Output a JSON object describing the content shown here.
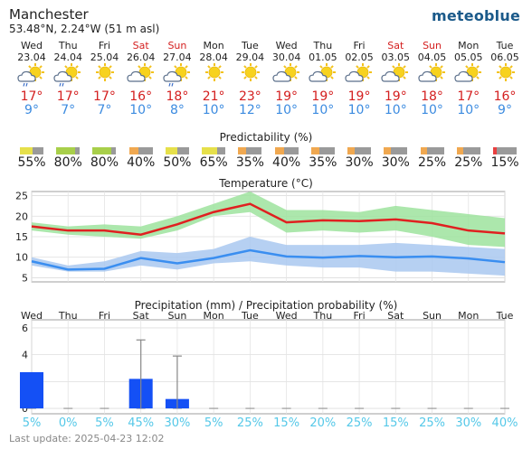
{
  "header": {
    "city": "Manchester",
    "coords": "53.48°N, 2.24°W (51 m asl)",
    "logo": "meteoblue"
  },
  "days": [
    {
      "name": "Wed",
      "date": "23.04",
      "tmax": "17°",
      "tmin": "9°",
      "weekend": false,
      "icon": "sun-cloud-rain-icon",
      "pred": "55%",
      "pred_level": 0.55,
      "precip_mm": 2.7,
      "precip_err": null,
      "precip_prob": "5%"
    },
    {
      "name": "Thu",
      "date": "24.04",
      "tmax": "17°",
      "tmin": "7°",
      "weekend": false,
      "icon": "sun-cloud-rain-icon",
      "pred": "80%",
      "pred_level": 0.8,
      "precip_mm": 0,
      "precip_err": null,
      "precip_prob": "0%"
    },
    {
      "name": "Fri",
      "date": "25.04",
      "tmax": "17°",
      "tmin": "7°",
      "weekend": false,
      "icon": "sun-icon",
      "pred": "80%",
      "pred_level": 0.8,
      "precip_mm": 0,
      "precip_err": null,
      "precip_prob": "5%"
    },
    {
      "name": "Sat",
      "date": "26.04",
      "tmax": "16°",
      "tmin": "10°",
      "weekend": true,
      "icon": "sun-cloud-icon",
      "pred": "40%",
      "pred_level": 0.4,
      "precip_mm": 2.2,
      "precip_err": [
        0,
        5.1
      ],
      "precip_prob": "45%"
    },
    {
      "name": "Sun",
      "date": "27.04",
      "tmax": "18°",
      "tmin": "8°",
      "weekend": true,
      "icon": "sun-cloud-rain-icon",
      "pred": "50%",
      "pred_level": 0.5,
      "precip_mm": 0.7,
      "precip_err": [
        0,
        3.9
      ],
      "precip_prob": "30%"
    },
    {
      "name": "Mon",
      "date": "28.04",
      "tmax": "21°",
      "tmin": "10°",
      "weekend": false,
      "icon": "sun-icon",
      "pred": "65%",
      "pred_level": 0.65,
      "precip_mm": 0,
      "precip_err": null,
      "precip_prob": "5%"
    },
    {
      "name": "Tue",
      "date": "29.04",
      "tmax": "23°",
      "tmin": "12°",
      "weekend": false,
      "icon": "sun-icon",
      "pred": "35%",
      "pred_level": 0.35,
      "precip_mm": 0,
      "precip_err": null,
      "precip_prob": "25%"
    },
    {
      "name": "Wed",
      "date": "30.04",
      "tmax": "19°",
      "tmin": "10°",
      "weekend": false,
      "icon": "sun-cloud-icon",
      "pred": "40%",
      "pred_level": 0.4,
      "precip_mm": 0,
      "precip_err": null,
      "precip_prob": "15%"
    },
    {
      "name": "Thu",
      "date": "01.05",
      "tmax": "19°",
      "tmin": "10°",
      "weekend": false,
      "icon": "sun-cloud-icon",
      "pred": "35%",
      "pred_level": 0.35,
      "precip_mm": 0,
      "precip_err": null,
      "precip_prob": "20%"
    },
    {
      "name": "Fri",
      "date": "02.05",
      "tmax": "19°",
      "tmin": "10°",
      "weekend": false,
      "icon": "sun-cloud-icon",
      "pred": "30%",
      "pred_level": 0.3,
      "precip_mm": 0,
      "precip_err": null,
      "precip_prob": "25%"
    },
    {
      "name": "Sat",
      "date": "03.05",
      "tmax": "19°",
      "tmin": "10°",
      "weekend": true,
      "icon": "sun-cloud-icon",
      "pred": "30%",
      "pred_level": 0.3,
      "precip_mm": 0,
      "precip_err": null,
      "precip_prob": "15%"
    },
    {
      "name": "Sun",
      "date": "04.05",
      "tmax": "18°",
      "tmin": "10°",
      "weekend": true,
      "icon": "sun-cloud-icon",
      "pred": "25%",
      "pred_level": 0.25,
      "precip_mm": 0,
      "precip_err": null,
      "precip_prob": "25%"
    },
    {
      "name": "Mon",
      "date": "05.05",
      "tmax": "17°",
      "tmin": "10°",
      "weekend": false,
      "icon": "sun-cloud-icon",
      "pred": "25%",
      "pred_level": 0.25,
      "precip_mm": 0,
      "precip_err": null,
      "precip_prob": "30%"
    },
    {
      "name": "Tue",
      "date": "06.05",
      "tmax": "16°",
      "tmin": "9°",
      "weekend": false,
      "icon": "sun-icon",
      "pred": "15%",
      "pred_level": 0.15,
      "precip_mm": 0,
      "precip_err": null,
      "precip_prob": "40%"
    }
  ],
  "predictability": {
    "title": "Predictability (%)"
  },
  "chart_data": [
    {
      "type": "line",
      "title": "Temperature (°C)",
      "ylim": [
        4,
        26
      ],
      "yticks": [
        "5",
        "10",
        "15",
        "20",
        "25"
      ],
      "series": [
        {
          "values": [
            17.5,
            16.5,
            16.5,
            15.5,
            18.0,
            21.0,
            23.0,
            18.5,
            19.0,
            18.8,
            19.2,
            18.3,
            16.5,
            15.8
          ],
          "color": "#e02020",
          "band": [
            [
              16.5,
              18.5
            ],
            [
              15.5,
              17.5
            ],
            [
              15.0,
              18.0
            ],
            [
              14.5,
              17.5
            ],
            [
              16.5,
              20.0
            ],
            [
              20.0,
              23.0
            ],
            [
              21.0,
              26.0
            ],
            [
              16.0,
              21.5
            ],
            [
              16.5,
              21.5
            ],
            [
              16.0,
              21.0
            ],
            [
              16.5,
              22.5
            ],
            [
              15.0,
              21.5
            ],
            [
              13.0,
              20.5
            ],
            [
              12.5,
              19.5
            ]
          ],
          "band_color": "#9de39d"
        },
        {
          "values": [
            9.0,
            7.0,
            7.2,
            9.8,
            8.5,
            9.8,
            11.7,
            10.2,
            9.9,
            10.3,
            10.0,
            10.2,
            9.7,
            8.8
          ],
          "color": "#3a8ef0",
          "band": [
            [
              8.0,
              10.0
            ],
            [
              6.5,
              8.0
            ],
            [
              6.5,
              9.0
            ],
            [
              8.0,
              11.5
            ],
            [
              7.0,
              11.0
            ],
            [
              8.5,
              12.0
            ],
            [
              9.0,
              15.0
            ],
            [
              8.0,
              13.0
            ],
            [
              7.5,
              13.0
            ],
            [
              7.5,
              13.0
            ],
            [
              6.5,
              13.5
            ],
            [
              6.5,
              13.0
            ],
            [
              6.0,
              12.5
            ],
            [
              5.5,
              12.0
            ]
          ],
          "band_color": "#a9c8f0"
        }
      ]
    },
    {
      "type": "bar",
      "title": "Precipitation (mm) / Precipitation probability (%)",
      "ylim": [
        -0.4,
        6.6
      ],
      "yticks": [
        "0",
        "2",
        "4",
        "6"
      ],
      "bar_color": "#1450f5"
    }
  ],
  "colors": {
    "tmax": "#d42020",
    "tmin": "#3c8be0",
    "prob": "#55c8e8",
    "pred_high": "#a8cf4a",
    "pred_mid": "#e6e04a",
    "pred_low": "#f0a850",
    "pred_verylow": "#e84040",
    "pred_grey": "#9a9a9a"
  },
  "footer": {
    "last_update": "Last update: 2025-04-23 12:02"
  }
}
